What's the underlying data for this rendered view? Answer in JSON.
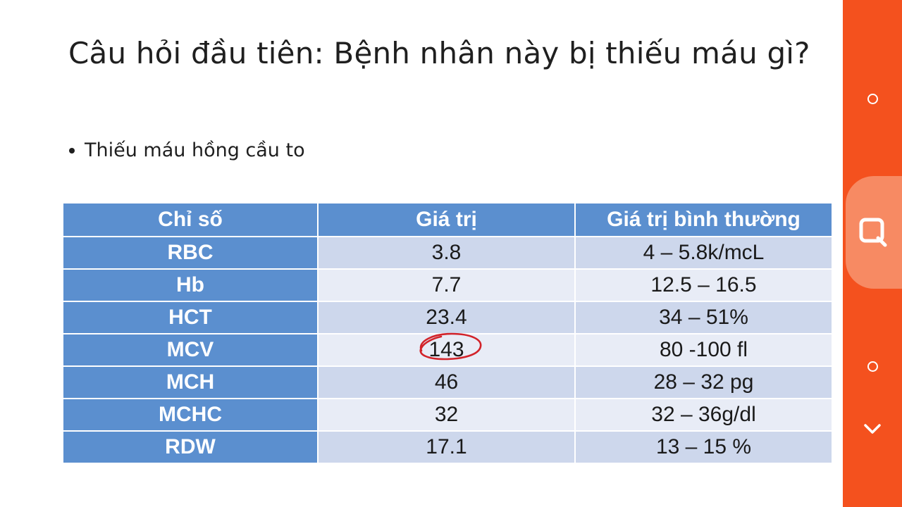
{
  "slide": {
    "title": "Câu hỏi đầu tiên: Bệnh nhân này bị thiếu máu gì?",
    "bullet": "Thiếu máu hồng cầu to",
    "table": {
      "headers": [
        "Chỉ số",
        "Giá trị",
        "Giá trị bình thường"
      ],
      "rows": [
        {
          "key": "RBC",
          "value": "3.8",
          "normal": "4 – 5.8k/mcL"
        },
        {
          "key": "Hb",
          "value": "7.7",
          "normal": "12.5 – 16.5"
        },
        {
          "key": "HCT",
          "value": "23.4",
          "normal": "34 – 51%"
        },
        {
          "key": "MCV",
          "value": "143",
          "normal": "80 -100 fl"
        },
        {
          "key": "MCH",
          "value": "46",
          "normal": "28 – 32 pg"
        },
        {
          "key": "MCHC",
          "value": "32",
          "normal": "32 – 36g/dl"
        },
        {
          "key": "RDW",
          "value": "17.1",
          "normal": "13 – 15 %"
        }
      ]
    },
    "annotation_color": "#d2232a"
  },
  "sidebar": {
    "background": "#f4511e",
    "buttons": [
      "circle-icon",
      "search-icon",
      "circle-icon",
      "chevron-down-icon"
    ]
  }
}
